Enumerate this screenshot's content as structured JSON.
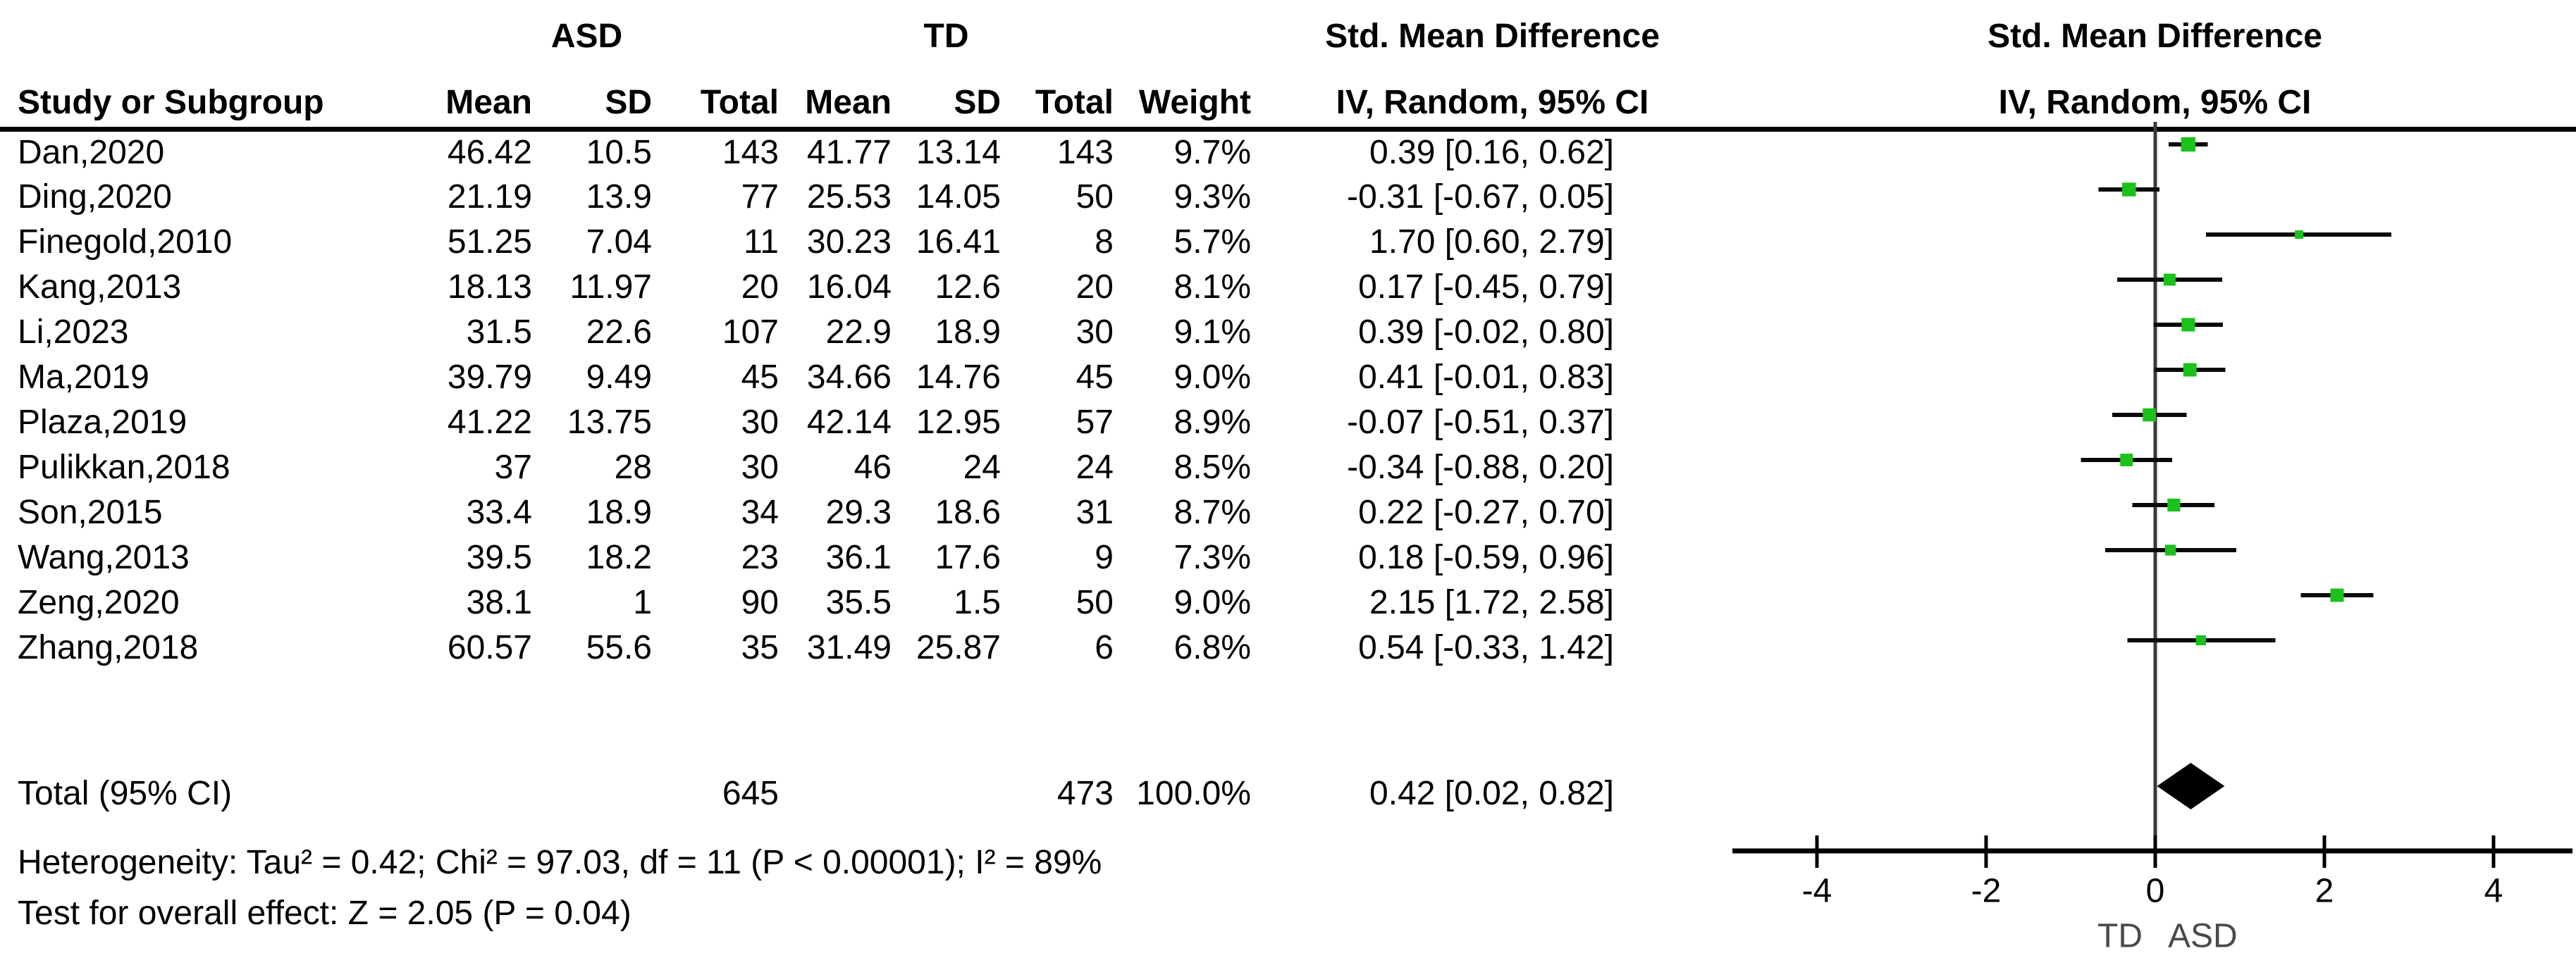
{
  "table": {
    "study_col_header": "Study or Subgroup",
    "group_asd": "ASD",
    "group_td": "TD",
    "smd_header_left": "Std. Mean Difference",
    "smd_header_right": "Std. Mean Difference",
    "subheaders": {
      "mean": "Mean",
      "sd": "SD",
      "total": "Total",
      "weight": "Weight",
      "ci": "IV, Random, 95% CI",
      "ci_right": "IV, Random, 95% CI"
    },
    "rows": [
      {
        "study": "Dan,2020",
        "asd_mean": "46.42",
        "asd_sd": "10.5",
        "asd_total": "143",
        "td_mean": "41.77",
        "td_sd": "13.14",
        "td_total": "143",
        "weight": "9.7%",
        "smd_ci": "0.39 [0.16, 0.62]"
      },
      {
        "study": "Ding,2020",
        "asd_mean": "21.19",
        "asd_sd": "13.9",
        "asd_total": "77",
        "td_mean": "25.53",
        "td_sd": "14.05",
        "td_total": "50",
        "weight": "9.3%",
        "smd_ci": "-0.31 [-0.67, 0.05]"
      },
      {
        "study": "Finegold,2010",
        "asd_mean": "51.25",
        "asd_sd": "7.04",
        "asd_total": "11",
        "td_mean": "30.23",
        "td_sd": "16.41",
        "td_total": "8",
        "weight": "5.7%",
        "smd_ci": "1.70 [0.60, 2.79]"
      },
      {
        "study": "Kang,2013",
        "asd_mean": "18.13",
        "asd_sd": "11.97",
        "asd_total": "20",
        "td_mean": "16.04",
        "td_sd": "12.6",
        "td_total": "20",
        "weight": "8.1%",
        "smd_ci": "0.17 [-0.45, 0.79]"
      },
      {
        "study": "Li,2023",
        "asd_mean": "31.5",
        "asd_sd": "22.6",
        "asd_total": "107",
        "td_mean": "22.9",
        "td_sd": "18.9",
        "td_total": "30",
        "weight": "9.1%",
        "smd_ci": "0.39 [-0.02, 0.80]"
      },
      {
        "study": "Ma,2019",
        "asd_mean": "39.79",
        "asd_sd": "9.49",
        "asd_total": "45",
        "td_mean": "34.66",
        "td_sd": "14.76",
        "td_total": "45",
        "weight": "9.0%",
        "smd_ci": "0.41 [-0.01, 0.83]"
      },
      {
        "study": "Plaza,2019",
        "asd_mean": "41.22",
        "asd_sd": "13.75",
        "asd_total": "30",
        "td_mean": "42.14",
        "td_sd": "12.95",
        "td_total": "57",
        "weight": "8.9%",
        "smd_ci": "-0.07 [-0.51, 0.37]"
      },
      {
        "study": "Pulikkan,2018",
        "asd_mean": "37",
        "asd_sd": "28",
        "asd_total": "30",
        "td_mean": "46",
        "td_sd": "24",
        "td_total": "24",
        "weight": "8.5%",
        "smd_ci": "-0.34 [-0.88, 0.20]"
      },
      {
        "study": "Son,2015",
        "asd_mean": "33.4",
        "asd_sd": "18.9",
        "asd_total": "34",
        "td_mean": "29.3",
        "td_sd": "18.6",
        "td_total": "31",
        "weight": "8.7%",
        "smd_ci": "0.22 [-0.27, 0.70]"
      },
      {
        "study": "Wang,2013",
        "asd_mean": "39.5",
        "asd_sd": "18.2",
        "asd_total": "23",
        "td_mean": "36.1",
        "td_sd": "17.6",
        "td_total": "9",
        "weight": "7.3%",
        "smd_ci": "0.18 [-0.59, 0.96]"
      },
      {
        "study": "Zeng,2020",
        "asd_mean": "38.1",
        "asd_sd": "1",
        "asd_total": "90",
        "td_mean": "35.5",
        "td_sd": "1.5",
        "td_total": "50",
        "weight": "9.0%",
        "smd_ci": "2.15 [1.72, 2.58]"
      },
      {
        "study": "Zhang,2018",
        "asd_mean": "60.57",
        "asd_sd": "55.6",
        "asd_total": "35",
        "td_mean": "31.49",
        "td_sd": "25.87",
        "td_total": "6",
        "weight": "6.8%",
        "smd_ci": "0.54 [-0.33, 1.42]"
      }
    ],
    "total_row": {
      "label": "Total (95% CI)",
      "asd_total": "645",
      "td_total": "473",
      "weight": "100.0%",
      "smd_ci": "0.42 [0.02, 0.82]"
    }
  },
  "footnotes": {
    "heterogeneity": "Heterogeneity: Tau² = 0.42; Chi² = 97.03, df = 11 (P < 0.00001); I² = 89%",
    "overall_effect": "Test for overall effect: Z = 2.05 (P = 0.04)"
  },
  "chart_data": {
    "type": "forest",
    "effect_measure": "Std. Mean Difference",
    "model": "IV, Random, 95% CI",
    "x_axis": {
      "ticks": [
        -4,
        -2,
        0,
        2,
        4
      ],
      "range": [
        -5,
        5
      ],
      "label_left": "TD",
      "label_right": "ASD"
    },
    "studies": [
      {
        "name": "Dan,2020",
        "smd": 0.39,
        "ci": [
          0.16,
          0.62
        ],
        "weight_pct": 9.7
      },
      {
        "name": "Ding,2020",
        "smd": -0.31,
        "ci": [
          -0.67,
          0.05
        ],
        "weight_pct": 9.3
      },
      {
        "name": "Finegold,2010",
        "smd": 1.7,
        "ci": [
          0.6,
          2.79
        ],
        "weight_pct": 5.7
      },
      {
        "name": "Kang,2013",
        "smd": 0.17,
        "ci": [
          -0.45,
          0.79
        ],
        "weight_pct": 8.1
      },
      {
        "name": "Li,2023",
        "smd": 0.39,
        "ci": [
          -0.02,
          0.8
        ],
        "weight_pct": 9.1
      },
      {
        "name": "Ma,2019",
        "smd": 0.41,
        "ci": [
          -0.01,
          0.83
        ],
        "weight_pct": 9.0
      },
      {
        "name": "Plaza,2019",
        "smd": -0.07,
        "ci": [
          -0.51,
          0.37
        ],
        "weight_pct": 8.9
      },
      {
        "name": "Pulikkan,2018",
        "smd": -0.34,
        "ci": [
          -0.88,
          0.2
        ],
        "weight_pct": 8.5
      },
      {
        "name": "Son,2015",
        "smd": 0.22,
        "ci": [
          -0.27,
          0.7
        ],
        "weight_pct": 8.7
      },
      {
        "name": "Wang,2013",
        "smd": 0.18,
        "ci": [
          -0.59,
          0.96
        ],
        "weight_pct": 7.3
      },
      {
        "name": "Zeng,2020",
        "smd": 2.15,
        "ci": [
          1.72,
          2.58
        ],
        "weight_pct": 9.0
      },
      {
        "name": "Zhang,2018",
        "smd": 0.54,
        "ci": [
          -0.33,
          1.42
        ],
        "weight_pct": 6.8
      }
    ],
    "total": {
      "label": "Total (95% CI)",
      "smd": 0.42,
      "ci": [
        0.02,
        0.82
      ]
    },
    "colors": {
      "marker": "#1CC11C",
      "ci_line": "#0a0a0a",
      "diamond": "#000000",
      "zero_line": "#3A3A3A",
      "axis": "#000000",
      "direction_labels": "#4a4a4a"
    }
  }
}
